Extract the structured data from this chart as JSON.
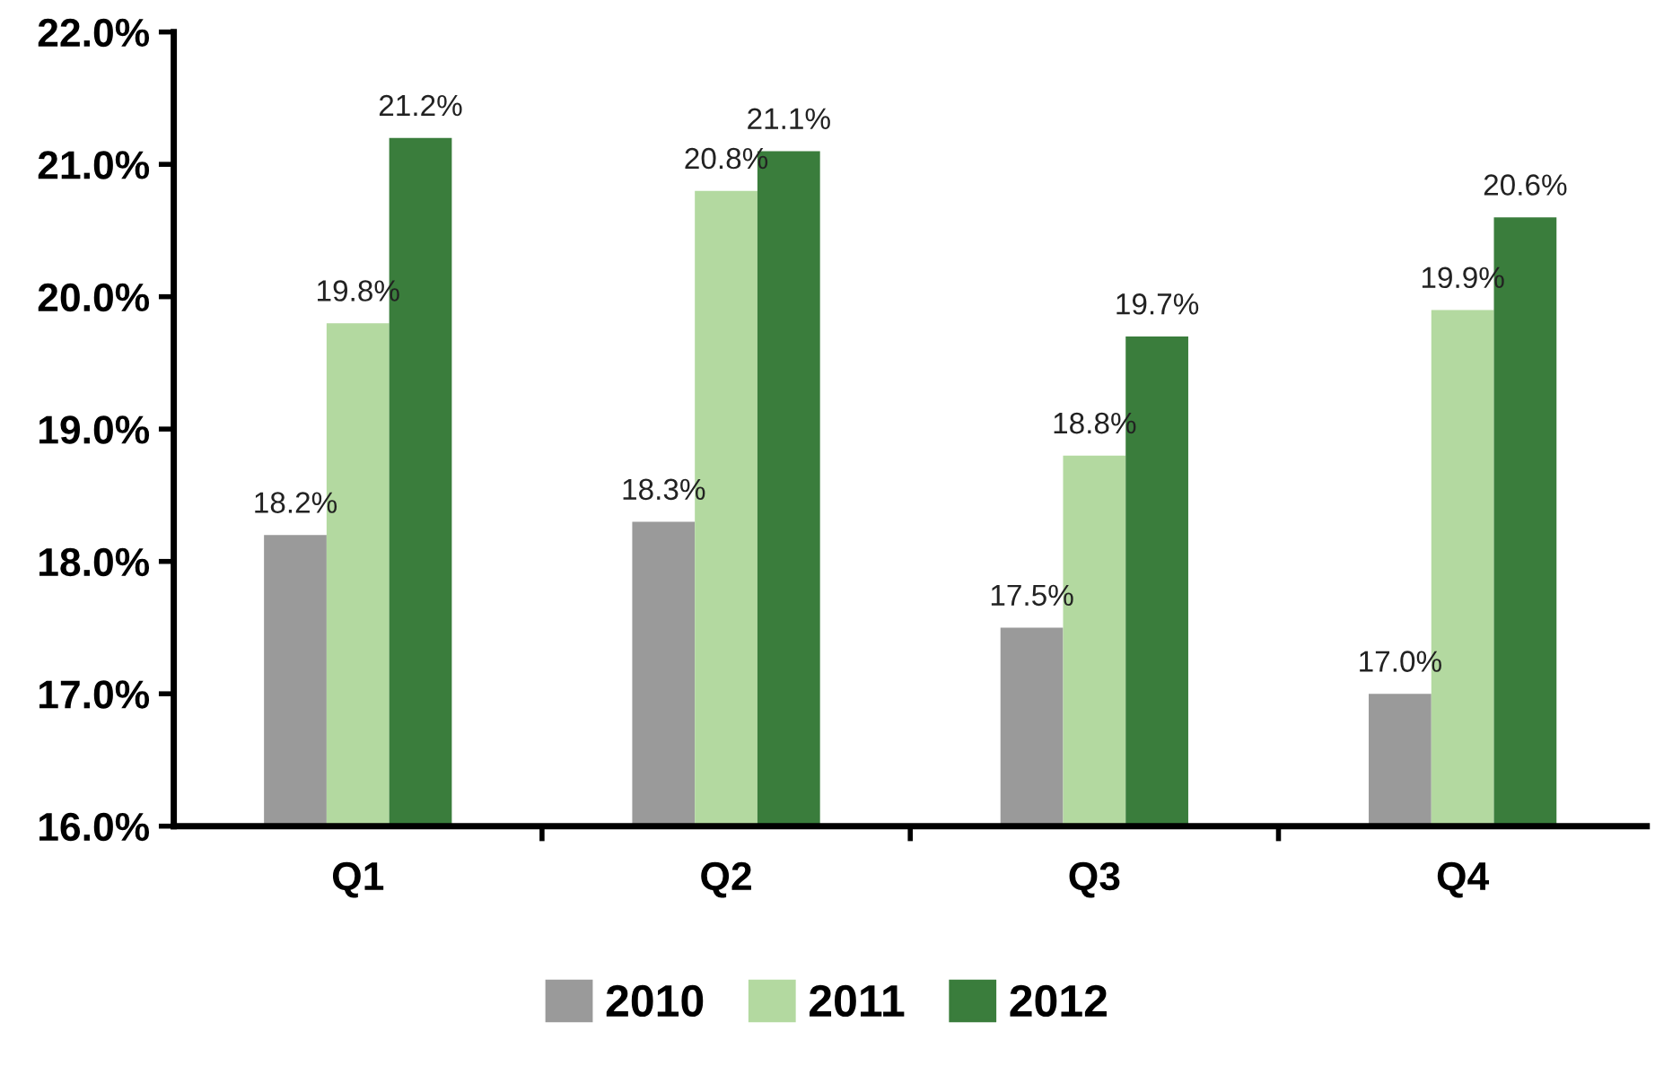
{
  "chart_data": {
    "type": "bar",
    "categories": [
      "Q1",
      "Q2",
      "Q3",
      "Q4"
    ],
    "series": [
      {
        "name": "2010",
        "color": "#9a9a9a",
        "values": [
          18.2,
          18.3,
          17.5,
          17.0
        ],
        "value_labels": [
          "18.2%",
          "18.3%",
          "17.5%",
          "17.0%"
        ]
      },
      {
        "name": "2011",
        "color": "#b3d9a0",
        "values": [
          19.8,
          20.8,
          18.8,
          19.9
        ],
        "value_labels": [
          "19.8%",
          "20.8%",
          "18.8%",
          "19.9%"
        ]
      },
      {
        "name": "2012",
        "color": "#3a7d3c",
        "values": [
          21.2,
          21.1,
          19.7,
          20.6
        ],
        "value_labels": [
          "21.2%",
          "21.1%",
          "19.7%",
          "20.6%"
        ]
      }
    ],
    "ylim": [
      16,
      22
    ],
    "yticks": [
      {
        "value": 16,
        "label": "16.0%"
      },
      {
        "value": 17,
        "label": "17.0%"
      },
      {
        "value": 18,
        "label": "18.0%"
      },
      {
        "value": 19,
        "label": "19.0%"
      },
      {
        "value": 20,
        "label": "20.0%"
      },
      {
        "value": 21,
        "label": "21.0%"
      },
      {
        "value": 22,
        "label": "22.0%"
      }
    ],
    "grid": false,
    "legend": "bottom"
  }
}
